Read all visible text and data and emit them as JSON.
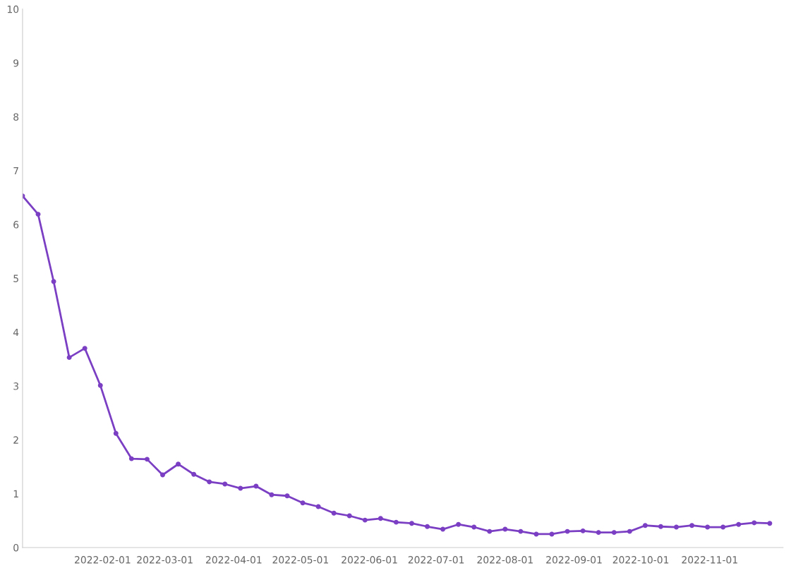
{
  "chart_data": {
    "type": "line",
    "x": [
      "2021-12-27",
      "2022-01-03",
      "2022-01-10",
      "2022-01-17",
      "2022-01-24",
      "2022-01-31",
      "2022-02-07",
      "2022-02-14",
      "2022-02-21",
      "2022-02-28",
      "2022-03-07",
      "2022-03-14",
      "2022-03-21",
      "2022-03-28",
      "2022-04-04",
      "2022-04-11",
      "2022-04-18",
      "2022-04-25",
      "2022-05-02",
      "2022-05-09",
      "2022-05-16",
      "2022-05-23",
      "2022-05-30",
      "2022-06-06",
      "2022-06-13",
      "2022-06-20",
      "2022-06-27",
      "2022-07-04",
      "2022-07-11",
      "2022-07-18",
      "2022-07-25",
      "2022-08-01",
      "2022-08-08",
      "2022-08-15",
      "2022-08-22",
      "2022-08-29",
      "2022-09-05",
      "2022-09-12",
      "2022-09-19",
      "2022-09-26",
      "2022-10-03",
      "2022-10-10",
      "2022-10-17",
      "2022-10-24",
      "2022-10-31",
      "2022-11-07",
      "2022-11-14",
      "2022-11-21",
      "2022-11-28"
    ],
    "series": [
      {
        "color": "#7b3fc4",
        "values": [
          6.53,
          6.19,
          4.94,
          3.53,
          3.7,
          3.01,
          2.12,
          1.65,
          1.64,
          1.35,
          1.55,
          1.36,
          1.22,
          1.18,
          1.1,
          1.14,
          0.98,
          0.96,
          0.83,
          0.76,
          0.64,
          0.59,
          0.51,
          0.54,
          0.47,
          0.45,
          0.39,
          0.34,
          0.43,
          0.38,
          0.3,
          0.34,
          0.3,
          0.25,
          0.25,
          0.3,
          0.31,
          0.28,
          0.28,
          0.3,
          0.41,
          0.39,
          0.38,
          0.41,
          0.38,
          0.38,
          0.43,
          0.46,
          0.45
        ]
      }
    ],
    "xlim": [
      "2021-12-27",
      "2022-12-04"
    ],
    "xticks": [
      "2022-02-01",
      "2022-03-01",
      "2022-04-01",
      "2022-05-01",
      "2022-06-01",
      "2022-07-01",
      "2022-08-01",
      "2022-09-01",
      "2022-10-01",
      "2022-11-01"
    ],
    "ylim": [
      0,
      10
    ],
    "yticks": [
      0,
      1,
      2,
      3,
      4,
      5,
      6,
      7,
      8,
      9,
      10
    ],
    "grid": false,
    "marker": "circle",
    "line_style": "solid"
  }
}
